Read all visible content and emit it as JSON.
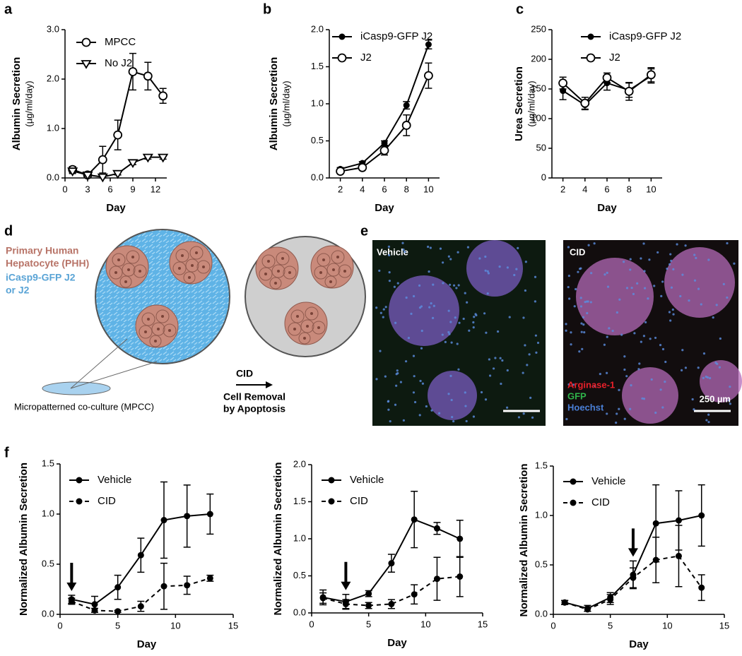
{
  "panel_labels": [
    "a",
    "b",
    "c",
    "d",
    "e",
    "f"
  ],
  "chart_data": [
    {
      "type": "line",
      "ylabel": "Albumin Secretion",
      "yunit": "(µg/ml/day)",
      "xlabel": "Day",
      "x": [
        1,
        3,
        5,
        7,
        9,
        11,
        13
      ],
      "xlim": [
        0,
        13.5
      ],
      "xticks": [
        0,
        3,
        6,
        9,
        12
      ],
      "ylim": [
        0,
        3
      ],
      "yticks": [
        {
          "value": 0,
          "label": "0.0"
        },
        {
          "value": 1,
          "label": "1.0"
        },
        {
          "value": 2,
          "label": "2.0"
        },
        {
          "value": 3,
          "label": "3.0"
        }
      ],
      "legend": "upper left",
      "series": [
        {
          "name": "MPCC",
          "color": "#000000",
          "marker": "open-circle",
          "line_style": "solid",
          "values": [
            0.17,
            0.06,
            0.37,
            0.87,
            2.15,
            2.06,
            1.66
          ],
          "errors": [
            0.06,
            0.03,
            0.27,
            0.3,
            0.37,
            0.28,
            0.15
          ]
        },
        {
          "name": "No J2",
          "color": "#000000",
          "marker": "open-triangle-down",
          "line_style": "solid",
          "values": [
            0.14,
            0.06,
            0.02,
            0.09,
            0.31,
            0.42,
            0.42
          ],
          "errors": [
            0.05,
            0.02,
            0.02,
            0.03,
            0.04,
            0.04,
            0.04
          ]
        }
      ]
    },
    {
      "type": "line",
      "ylabel": "Albumin Secretion",
      "yunit": "(µg/ml/day)",
      "xlabel": "Day",
      "x": [
        2,
        4,
        6,
        8,
        10
      ],
      "xlim": [
        1,
        11
      ],
      "xticks": [
        2,
        4,
        6,
        8,
        10
      ],
      "ylim": [
        0,
        2
      ],
      "yticks": [
        {
          "value": 0,
          "label": "0.0"
        },
        {
          "value": 0.5,
          "label": "0.5"
        },
        {
          "value": 1,
          "label": "1.0"
        },
        {
          "value": 1.5,
          "label": "1.5"
        },
        {
          "value": 2,
          "label": "2.0"
        }
      ],
      "legend": "upper left",
      "series": [
        {
          "name": "iCasp9-GFP J2",
          "color": "#000000",
          "marker": "filled-circle",
          "line_style": "solid",
          "values": [
            0.12,
            0.2,
            0.47,
            0.98,
            1.8
          ],
          "errors": [
            0.02,
            0.02,
            0.03,
            0.05,
            0.06
          ]
        },
        {
          "name": "J2",
          "color": "#000000",
          "marker": "open-circle",
          "line_style": "solid",
          "values": [
            0.09,
            0.14,
            0.37,
            0.71,
            1.38
          ],
          "errors": [
            0.02,
            0.02,
            0.06,
            0.14,
            0.17
          ]
        }
      ]
    },
    {
      "type": "line",
      "ylabel": "Urea Secretion",
      "yunit": "(µg/ml/day)",
      "xlabel": "Day",
      "x": [
        2,
        4,
        6,
        8,
        10
      ],
      "xlim": [
        1,
        11
      ],
      "xticks": [
        2,
        4,
        6,
        8,
        10
      ],
      "ylim": [
        0,
        250
      ],
      "yticks": [
        0,
        50,
        100,
        150,
        200,
        250
      ],
      "legend": "upper left",
      "series": [
        {
          "name": "iCasp9-GFP J2",
          "color": "#000000",
          "marker": "filled-circle",
          "line_style": "solid",
          "values": [
            147,
            123,
            160,
            148,
            172
          ],
          "errors": [
            15,
            8,
            12,
            12,
            12
          ]
        },
        {
          "name": "J2",
          "color": "#000000",
          "marker": "open-circle",
          "line_style": "solid",
          "values": [
            160,
            126,
            169,
            146,
            174
          ],
          "errors": [
            10,
            10,
            8,
            15,
            12
          ]
        }
      ]
    },
    {
      "type": "line",
      "ylabel": "Normalized Albumin Secretion",
      "xlabel": "Day",
      "x": [
        1,
        3,
        5,
        7,
        9,
        11,
        13
      ],
      "xlim": [
        0,
        15
      ],
      "xticks": [
        0,
        5,
        10,
        15
      ],
      "ylim": [
        0,
        1.5
      ],
      "yticks": [
        {
          "value": 0,
          "label": "0.0"
        },
        {
          "value": 0.5,
          "label": "0.5"
        },
        {
          "value": 1,
          "label": "1.0"
        },
        {
          "value": 1.5,
          "label": "1.5"
        }
      ],
      "legend": "upper left",
      "arrow_x": 1,
      "series": [
        {
          "name": "Vehicle",
          "color": "#000000",
          "marker": "filled-circle",
          "line_style": "solid",
          "values": [
            0.15,
            0.1,
            0.27,
            0.59,
            0.94,
            0.98,
            1.0
          ],
          "errors": [
            0.04,
            0.08,
            0.12,
            0.17,
            0.38,
            0.31,
            0.2
          ]
        },
        {
          "name": "CID",
          "color": "#000000",
          "marker": "filled-circle",
          "line_style": "dashed",
          "values": [
            0.13,
            0.04,
            0.03,
            0.08,
            0.28,
            0.29,
            0.36
          ],
          "errors": [
            0.03,
            0.02,
            0.01,
            0.05,
            0.23,
            0.09,
            0.03
          ]
        }
      ]
    },
    {
      "type": "line",
      "ylabel": "Normalized Albumin Secretion",
      "xlabel": "Day",
      "x": [
        1,
        3,
        5,
        7,
        9,
        11,
        13
      ],
      "xlim": [
        0,
        15
      ],
      "xticks": [
        0,
        5,
        10,
        15
      ],
      "ylim": [
        0,
        2
      ],
      "yticks": [
        {
          "value": 0,
          "label": "0.0"
        },
        {
          "value": 0.5,
          "label": "0.5"
        },
        {
          "value": 1,
          "label": "1.0"
        },
        {
          "value": 1.5,
          "label": "1.5"
        },
        {
          "value": 2,
          "label": "2.0"
        }
      ],
      "legend": "upper left",
      "arrow_x": 3,
      "series": [
        {
          "name": "Vehicle",
          "color": "#000000",
          "marker": "filled-circle",
          "line_style": "solid",
          "values": [
            0.21,
            0.15,
            0.26,
            0.67,
            1.26,
            1.14,
            1.0
          ],
          "errors": [
            0.1,
            0.1,
            0.04,
            0.12,
            0.38,
            0.08,
            0.25
          ]
        },
        {
          "name": "CID",
          "color": "#000000",
          "marker": "filled-circle",
          "line_style": "dashed",
          "values": [
            0.2,
            0.12,
            0.1,
            0.12,
            0.25,
            0.46,
            0.49
          ],
          "errors": [
            0.07,
            0.06,
            0.04,
            0.06,
            0.13,
            0.29,
            0.27
          ]
        }
      ]
    },
    {
      "type": "line",
      "ylabel": "Normalized Albumin Secretion",
      "xlabel": "Day",
      "x": [
        1,
        3,
        5,
        7,
        9,
        11,
        13
      ],
      "xlim": [
        0,
        15
      ],
      "xticks": [
        0,
        5,
        10,
        15
      ],
      "ylim": [
        0,
        1.5
      ],
      "yticks": [
        {
          "value": 0,
          "label": "0.0"
        },
        {
          "value": 0.5,
          "label": "0.5"
        },
        {
          "value": 1,
          "label": "1.0"
        },
        {
          "value": 1.5,
          "label": "1.5"
        }
      ],
      "legend": "upper left",
      "arrow_x": 7,
      "series": [
        {
          "name": "Vehicle",
          "color": "#000000",
          "marker": "filled-circle",
          "line_style": "solid",
          "values": [
            0.12,
            0.06,
            0.17,
            0.4,
            0.92,
            0.95,
            1.0
          ],
          "errors": [
            0.02,
            0.03,
            0.05,
            0.14,
            0.39,
            0.3,
            0.31
          ]
        },
        {
          "name": "CID",
          "color": "#000000",
          "marker": "filled-circle",
          "line_style": "dashed",
          "values": [
            0.12,
            0.05,
            0.15,
            0.37,
            0.55,
            0.59,
            0.27
          ],
          "errors": [
            0.02,
            0.02,
            0.05,
            0.1,
            0.23,
            0.31,
            0.13
          ]
        }
      ]
    }
  ],
  "diagram": {
    "hepatocyte_label": [
      "Primary Human",
      "Hepatocyte (PHH)"
    ],
    "fibroblast_label": [
      "iCasp9-GFP J2",
      "or J2"
    ],
    "arrow_label": "CID",
    "arrow_sublabel": [
      "Cell Removal",
      "by Apoptosis"
    ],
    "dish_label": "Micropatterned co-culture (MPCC)"
  },
  "images": [
    {
      "label": "Vehicle"
    },
    {
      "label": "CID",
      "legend": [
        {
          "text": "Arginase-1",
          "color": "#e8202a"
        },
        {
          "text": "GFP",
          "color": "#2fb34a"
        },
        {
          "text": "Hoechst",
          "color": "#4a7fd6"
        }
      ],
      "scale_bar": "250 µm"
    }
  ]
}
